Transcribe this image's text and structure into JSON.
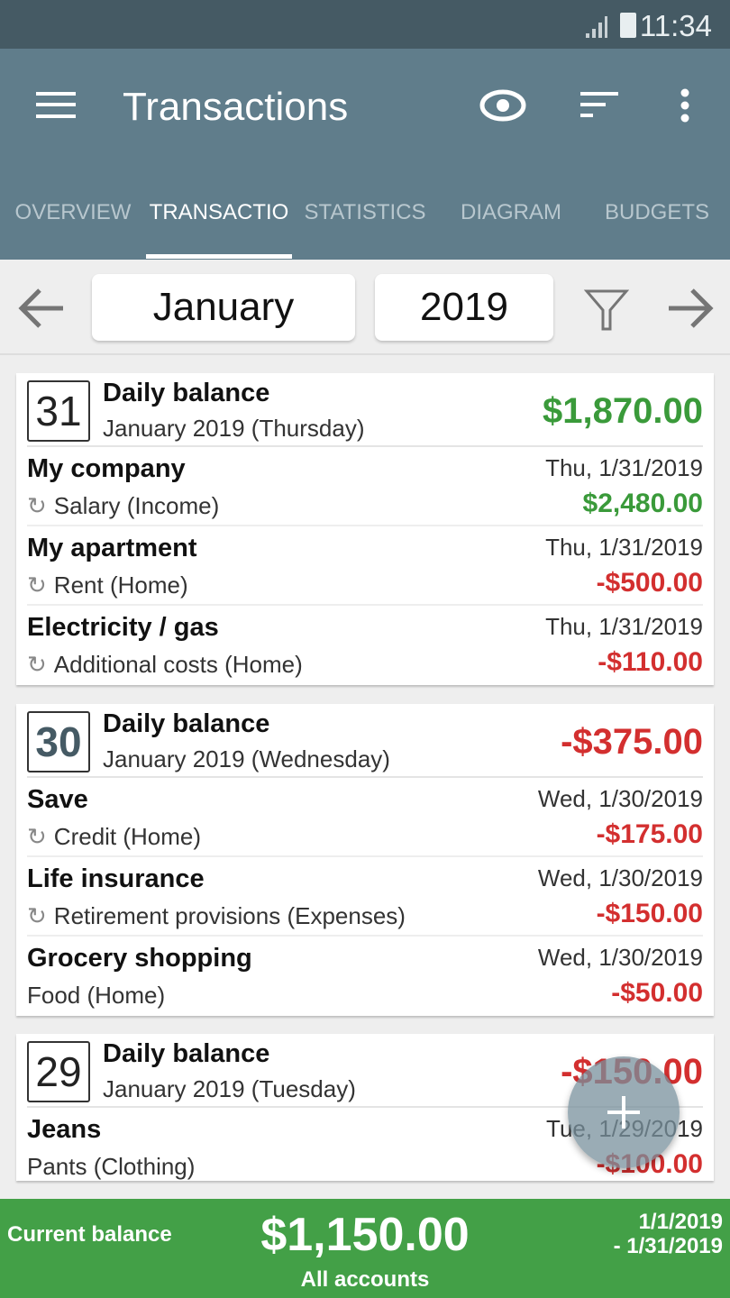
{
  "status": {
    "time": "11:34"
  },
  "toolbar": {
    "title": "Transactions",
    "icons": [
      "menu-icon",
      "eye-icon",
      "sort-icon",
      "more-vert-icon"
    ]
  },
  "tabs": [
    {
      "label": "OVERVIEW"
    },
    {
      "label": "TRANSACTIO",
      "active": true
    },
    {
      "label": "STATISTICS"
    },
    {
      "label": "DIAGRAM"
    },
    {
      "label": "BUDGETS"
    }
  ],
  "period": {
    "month": "January",
    "year": "2019"
  },
  "days": [
    {
      "day": "31",
      "label": "Daily balance",
      "sub": "January 2019 (Thursday)",
      "amount": "$1,870.00",
      "sign": "pos",
      "items": [
        {
          "name": "My company",
          "category": "Salary (Income)",
          "recurring": true,
          "date": "Thu, 1/31/2019",
          "amount": "$2,480.00",
          "sign": "pos"
        },
        {
          "name": "My apartment",
          "category": "Rent (Home)",
          "recurring": true,
          "date": "Thu, 1/31/2019",
          "amount": "-$500.00",
          "sign": "neg"
        },
        {
          "name": "Electricity / gas",
          "category": "Additional costs (Home)",
          "recurring": true,
          "date": "Thu, 1/31/2019",
          "amount": "-$110.00",
          "sign": "neg"
        }
      ]
    },
    {
      "day": "30",
      "label": "Daily balance",
      "sub": "January 2019 (Wednesday)",
      "amount": "-$375.00",
      "sign": "neg",
      "items": [
        {
          "name": "Save",
          "category": "Credit (Home)",
          "recurring": true,
          "date": "Wed, 1/30/2019",
          "amount": "-$175.00",
          "sign": "neg"
        },
        {
          "name": "Life insurance",
          "category": "Retirement provisions (Expenses)",
          "recurring": true,
          "date": "Wed, 1/30/2019",
          "amount": "-$150.00",
          "sign": "neg"
        },
        {
          "name": "Grocery shopping",
          "category": "Food (Home)",
          "recurring": false,
          "date": "Wed, 1/30/2019",
          "amount": "-$50.00",
          "sign": "neg"
        }
      ]
    },
    {
      "day": "29",
      "label": "Daily balance",
      "sub": "January 2019 (Tuesday)",
      "amount": "-$150.00",
      "sign": "neg",
      "items": [
        {
          "name": "Jeans",
          "category": "Pants (Clothing)",
          "recurring": false,
          "date": "Tue, 1/29/2019",
          "amount": "-$100.00",
          "sign": "neg"
        }
      ]
    }
  ],
  "footer": {
    "label": "Current balance",
    "amount": "$1,150.00",
    "accounts": "All accounts",
    "range_start": "1/1/2019",
    "range_end": "- 1/31/2019"
  },
  "colors": {
    "statusbar": "#455a64",
    "toolbar": "#607d8b",
    "positive": "#3a9a3a",
    "negative": "#d32f2f",
    "footer": "#43a047",
    "today_day": "#455a64"
  }
}
